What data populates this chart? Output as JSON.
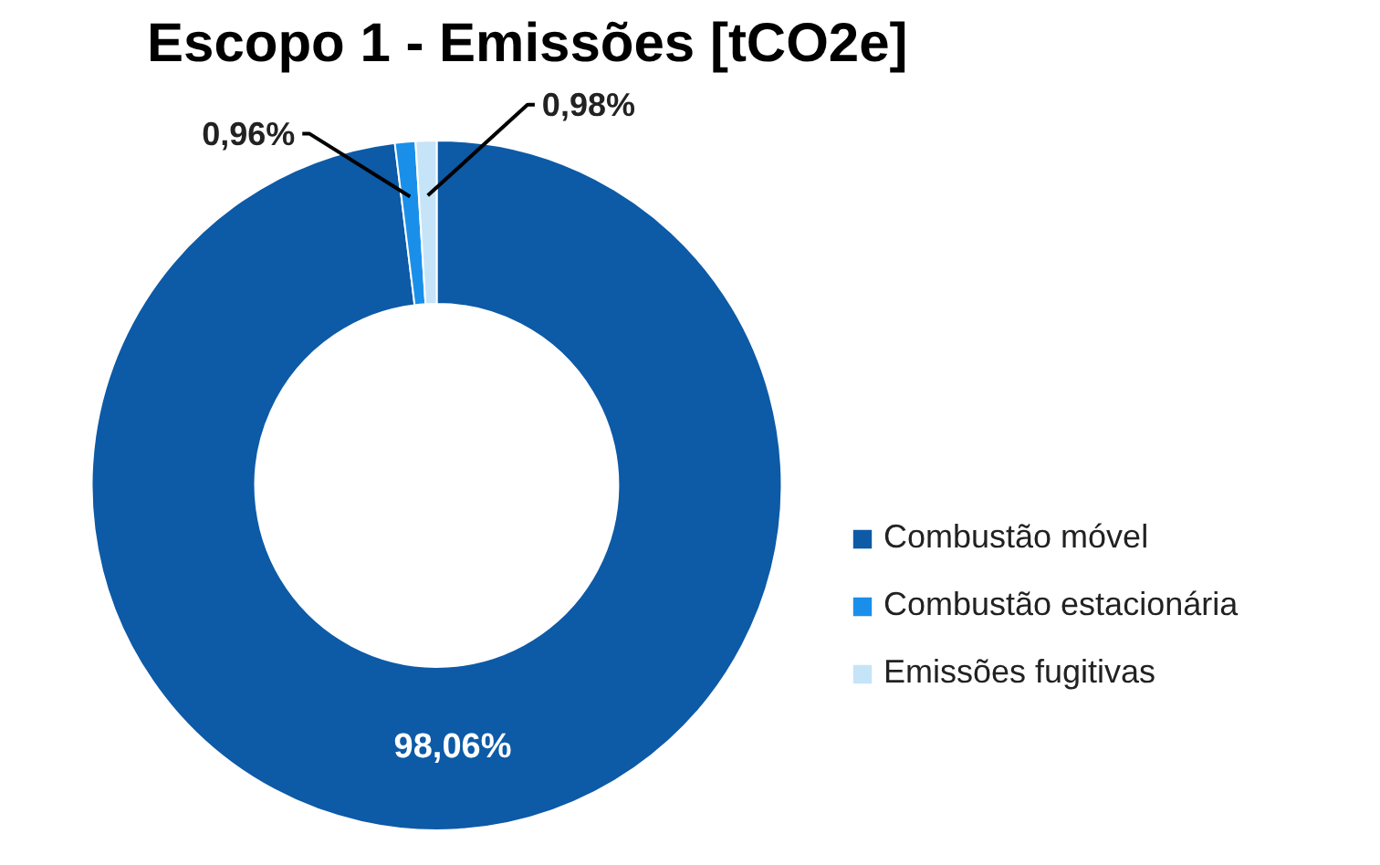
{
  "chart_data": {
    "type": "donut",
    "title": "Escopo 1 - Emissões [tCO2e]",
    "categories": [
      "Combustão móvel",
      "Combustão estacionária",
      "Emissões fugitivas"
    ],
    "values": [
      98.06,
      0.96,
      0.98
    ],
    "colors": [
      "#0d5aa7",
      "#1a8fea",
      "#c6e4f8"
    ],
    "value_labels": [
      "98,06%",
      "0,96%",
      "0,98%"
    ],
    "legend": "right"
  }
}
